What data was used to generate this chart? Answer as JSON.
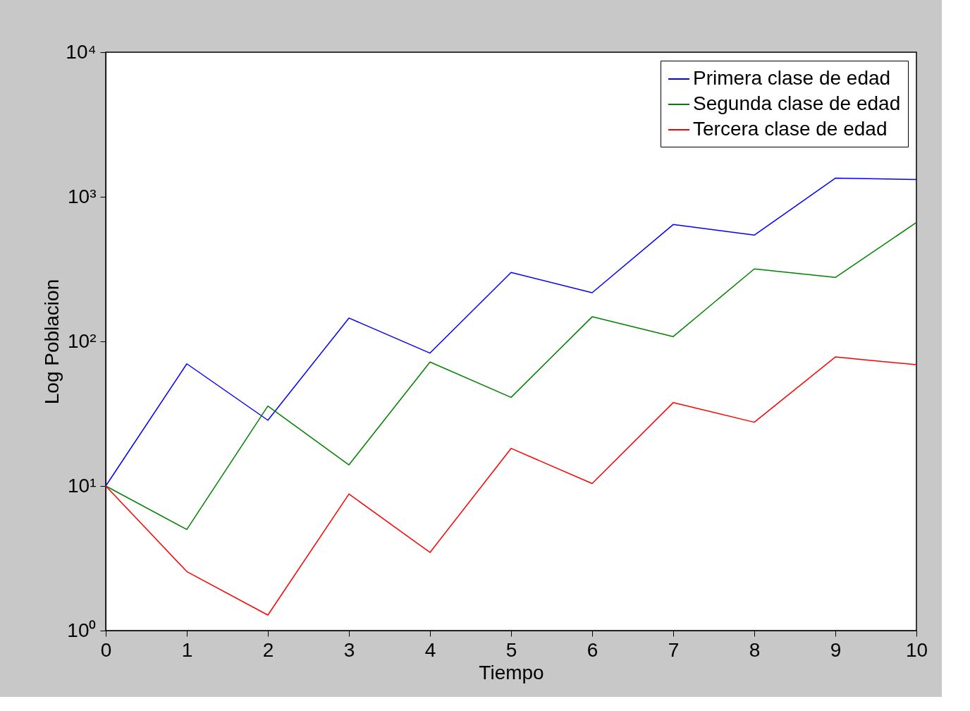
{
  "chart_data": {
    "type": "line",
    "xlabel": "Tiempo",
    "ylabel": "Log Poblacion",
    "log": true,
    "grid": false,
    "legend": "top right",
    "marker": "none",
    "line_style": "solid",
    "x": [
      0,
      1,
      2,
      3,
      4,
      5,
      6,
      7,
      8,
      9,
      10
    ],
    "xlim": [
      0,
      10
    ],
    "xticks": [
      0,
      1,
      2,
      3,
      4,
      5,
      6,
      7,
      8,
      9,
      10
    ],
    "ylim": [
      1,
      10000
    ],
    "yticks": [
      {
        "value": 1,
        "label": "10⁰"
      },
      {
        "value": 10,
        "label": "10¹"
      },
      {
        "value": 100,
        "label": "10²"
      },
      {
        "value": 1000,
        "label": "10³"
      },
      {
        "value": 10000,
        "label": "10⁴"
      }
    ],
    "series": [
      {
        "name": "Primera clase de edad",
        "color": "#0000ff",
        "values": [
          10,
          70,
          28.5,
          145,
          83,
          300,
          217,
          643,
          543,
          1345,
          1316
        ]
      },
      {
        "name": "Segunda clase de edad",
        "color": "#008000",
        "values": [
          10,
          5.0,
          35.7,
          14,
          72,
          41,
          148,
          108,
          317,
          277,
          664
        ]
      },
      {
        "name": "Tercera clase de edad",
        "color": "#ff0000",
        "values": [
          10,
          2.56,
          1.28,
          8.8,
          3.47,
          18.2,
          10.4,
          37.7,
          27.6,
          78,
          69
        ]
      }
    ]
  }
}
